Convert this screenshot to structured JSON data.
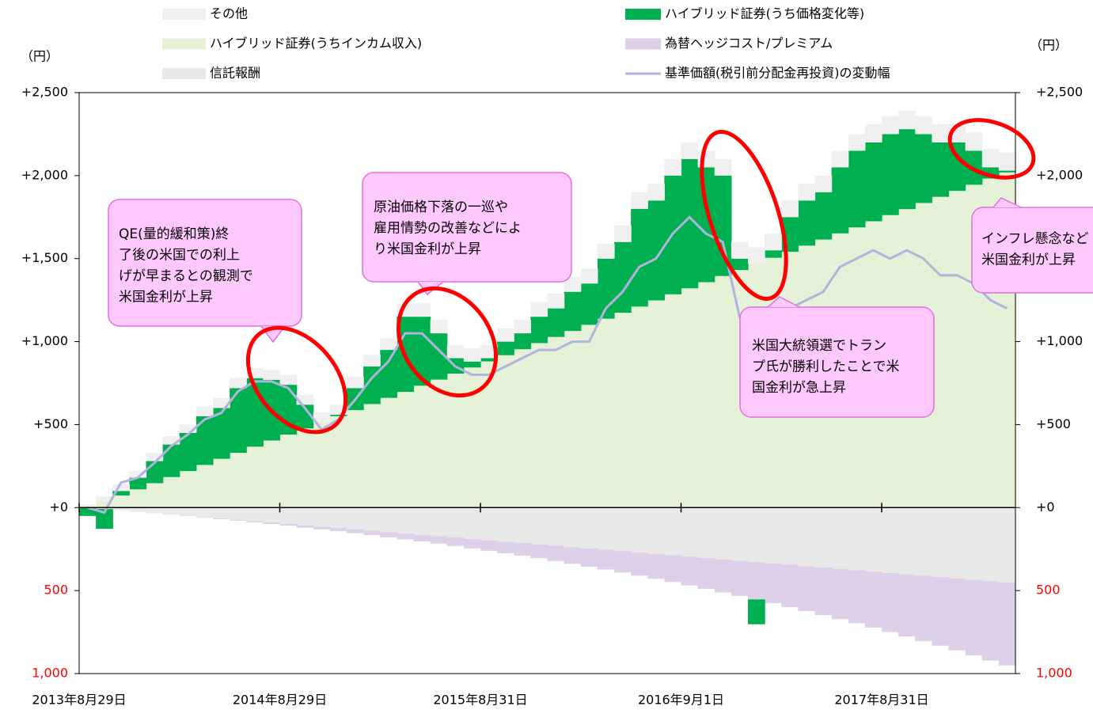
{
  "chart_data": {
    "type": "bar",
    "stacked": true,
    "y_label": "（円）",
    "y2_label": "（円）",
    "categories": [
      "2013年8月29日",
      null,
      null,
      null,
      null,
      null,
      null,
      null,
      null,
      null,
      null,
      null,
      "2014年8月29日",
      null,
      null,
      null,
      null,
      null,
      null,
      null,
      null,
      null,
      null,
      null,
      "2015年8月31日",
      null,
      null,
      null,
      null,
      null,
      null,
      null,
      null,
      null,
      null,
      null,
      "2016年9月1日",
      null,
      null,
      null,
      null,
      null,
      null,
      null,
      null,
      null,
      null,
      null,
      "2017年8月31日",
      null,
      null,
      null,
      null,
      null,
      null,
      null
    ],
    "ylim": [
      -1000,
      2500
    ],
    "yticks": [
      {
        "value": 2500,
        "label": "+2,500"
      },
      {
        "value": 2000,
        "label": "+2,000"
      },
      {
        "value": 1500,
        "label": "+1,500"
      },
      {
        "value": 1000,
        "label": "+1,000"
      },
      {
        "value": 500,
        "label": "+500"
      },
      {
        "value": 0,
        "label": "+0"
      },
      {
        "value": -500,
        "label": "500"
      },
      {
        "value": -1000,
        "label": "1,000"
      }
    ],
    "y2lim": [
      -1000,
      2500
    ],
    "y2ticks": [
      {
        "value": 2500,
        "label": "+2,500"
      },
      {
        "value": 2000,
        "label": "+2,000"
      },
      {
        "value": 1500,
        "label": "+1,500"
      },
      {
        "value": 1000,
        "label": "+1,000"
      },
      {
        "value": 500,
        "label": "+500"
      },
      {
        "value": 0,
        "label": "+0"
      },
      {
        "value": -500,
        "label": "500"
      },
      {
        "value": -1000,
        "label": "1,000"
      }
    ],
    "series": [
      {
        "name": "その他",
        "color": "#f0f0f0",
        "values": [
          20,
          30,
          40,
          40,
          50,
          50,
          50,
          60,
          60,
          60,
          60,
          60,
          60,
          60,
          60,
          60,
          70,
          70,
          70,
          80,
          80,
          80,
          80,
          80,
          80,
          80,
          80,
          90,
          90,
          90,
          90,
          90,
          100,
          100,
          100,
          100,
          100,
          100,
          100,
          100,
          100,
          100,
          100,
          100,
          100,
          100,
          100,
          110,
          110,
          110,
          110,
          110,
          110,
          110,
          110,
          110
        ]
      },
      {
        "name": "ハイブリッド証券(うち価格変化等)",
        "color": "#00b050",
        "values": [
          -50,
          -120,
          27,
          70,
          133,
          196,
          230,
          293,
          306,
          390,
          413,
          366,
          300,
          143,
          0,
          9,
          133,
          226,
          289,
          453,
          416,
          279,
          93,
          36,
          19,
          82,
          96,
          159,
          172,
          236,
          249,
          362,
          426,
          589,
          602,
          715,
          779,
          692,
          605,
          69,
          -150,
          45,
          209,
          272,
          285,
          398,
          462,
          475,
          488,
          482,
          415,
          328,
          292,
          205,
          68,
          11
        ]
      },
      {
        "name": "ハイブリッド証券(うちインカム収入)",
        "color": "#e6f2d8",
        "values": [
          0,
          37,
          73,
          110,
          147,
          184,
          220,
          257,
          294,
          330,
          367,
          404,
          440,
          477,
          514,
          551,
          587,
          624,
          661,
          697,
          734,
          771,
          807,
          844,
          881,
          918,
          954,
          991,
          1028,
          1064,
          1101,
          1138,
          1174,
          1211,
          1248,
          1285,
          1321,
          1358,
          1395,
          1431,
          1468,
          1505,
          1541,
          1578,
          1615,
          1652,
          1688,
          1725,
          1762,
          1798,
          1835,
          1872,
          1908,
          1945,
          1982,
          2019
        ]
      },
      {
        "name": "為替ヘッジコスト/プレミアム",
        "color": "#ddd0e8",
        "values": [
          0,
          0,
          0,
          0,
          -1,
          -1,
          -2,
          -3,
          -4,
          -5,
          -7,
          -9,
          -11,
          -14,
          -16,
          -19,
          -23,
          -27,
          -31,
          -35,
          -40,
          -45,
          -51,
          -57,
          -63,
          -70,
          -77,
          -84,
          -92,
          -101,
          -110,
          -119,
          -129,
          -139,
          -150,
          -161,
          -174,
          -186,
          -199,
          -212,
          -225,
          -240,
          -255,
          -270,
          -286,
          -303,
          -320,
          -338,
          -356,
          -375,
          -394,
          -414,
          -434,
          -456,
          -478,
          -500
        ]
      },
      {
        "name": "信託報酬",
        "color": "#e9e9e9",
        "values": [
          0,
          -8,
          -16,
          -25,
          -33,
          -41,
          -49,
          -57,
          -66,
          -74,
          -82,
          -90,
          -98,
          -107,
          -115,
          -123,
          -131,
          -139,
          -148,
          -156,
          -164,
          -172,
          -180,
          -189,
          -197,
          -205,
          -213,
          -221,
          -230,
          -238,
          -246,
          -254,
          -262,
          -271,
          -279,
          -287,
          -295,
          -303,
          -312,
          -320,
          -328,
          -336,
          -344,
          -353,
          -361,
          -369,
          -377,
          -385,
          -394,
          -402,
          -410,
          -418,
          -426,
          -435,
          -443,
          -451
        ]
      },
      {
        "name": "基準価額(税引前分配金再投資)の変動幅",
        "color": "#b0b4de",
        "type": "line",
        "values": [
          0,
          -30,
          150,
          180,
          270,
          370,
          440,
          530,
          570,
          700,
          760,
          760,
          720,
          600,
          470,
          530,
          650,
          780,
          880,
          1050,
          1050,
          950,
          850,
          800,
          800,
          850,
          900,
          950,
          950,
          1000,
          1000,
          1200,
          1300,
          1450,
          1500,
          1650,
          1750,
          1650,
          1600,
          1150,
          1000,
          1050,
          1200,
          1250,
          1300,
          1450,
          1500,
          1550,
          1500,
          1550,
          1500,
          1400,
          1400,
          1350,
          1250,
          1200
        ]
      }
    ],
    "annotations": [
      {
        "lines": [
          "QE(量的緩和策)終",
          "了後の米国での利上",
          "げが早まるとの観測で",
          "米国金利が上昇"
        ]
      },
      {
        "lines": [
          "原油価格下落の一巡や",
          "雇用情勢の改善などによ",
          "り米国金利が上昇"
        ]
      },
      {
        "lines": [
          "米国大統領選でトラン",
          "プ氏が勝利したことで米",
          "国金利が急上昇"
        ]
      },
      {
        "lines": [
          "インフレ懸念など",
          "米国金利が上昇"
        ]
      }
    ]
  }
}
